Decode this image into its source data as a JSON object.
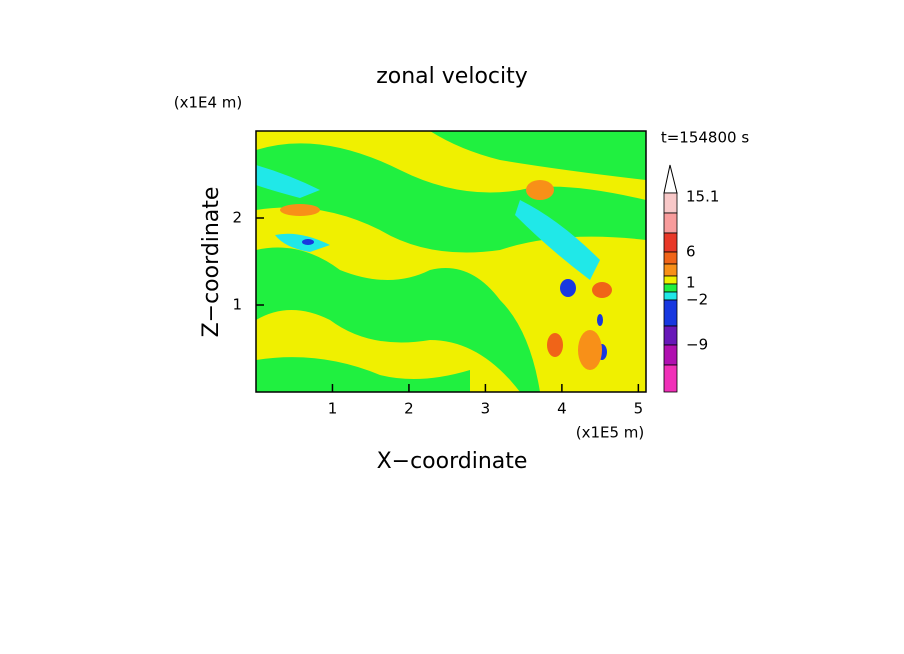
{
  "chart_data": {
    "type": "contour",
    "title": "zonal velocity",
    "x_label": "X−coordinate",
    "y_label": "Z−coordinate",
    "x_unit": "(x1E5 m)",
    "y_unit": "(x1E4 m)",
    "time_label": "t=154800 s",
    "xlim": [
      0,
      5.1
    ],
    "xticks": [
      1,
      2,
      3,
      4,
      5
    ],
    "ylim": [
      0,
      3
    ],
    "yticks": [
      1,
      2
    ],
    "colorbar": {
      "colors": [
        "#f8c8c8",
        "#f89c9c",
        "#e83828",
        "#f06418",
        "#f89018",
        "#f0f000",
        "#20f040",
        "#20e8e8",
        "#1838e0",
        "#6818b8",
        "#b010b0",
        "#f030b8"
      ],
      "ticks": [
        {
          "value": 15.1,
          "label": "15.1"
        },
        6,
        1,
        {
          "value": -2,
          "label": "−2"
        },
        {
          "value": -9,
          "label": "−9"
        }
      ]
    }
  }
}
